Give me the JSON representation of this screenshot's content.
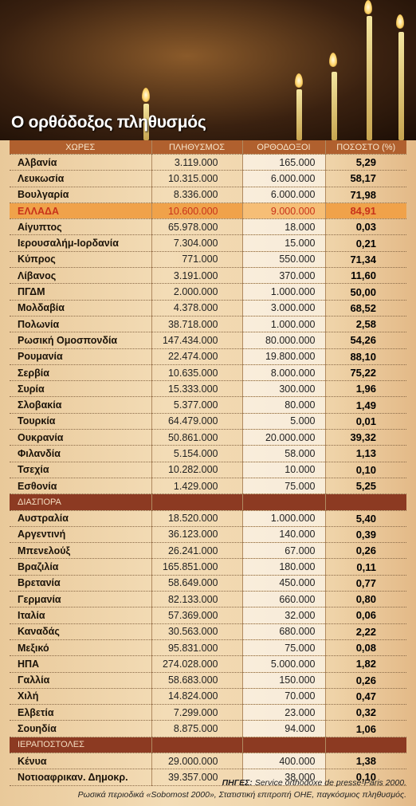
{
  "header": {
    "title": "Ο ορθόδοξος πληθυσμός"
  },
  "table": {
    "columns": [
      "ΧΩΡΕΣ",
      "ΠΛΗΘΥΣΜΟΣ",
      "ΟΡΘΟΔΟΞΟΙ",
      "ΠΟΣΟΣΤΟ (%)"
    ],
    "sections": [
      {
        "rows": [
          [
            "Αλβανία",
            "3.119.000",
            "165.000",
            "5,29"
          ],
          [
            "Λευκωσία",
            "10.315.000",
            "6.000.000",
            "58,17"
          ],
          [
            "Βουλγαρία",
            "8.336.000",
            "6.000.000",
            "71,98"
          ],
          [
            "ΕΛΛΑΔΑ",
            "10.600.000",
            "9.000.000",
            "84,91"
          ],
          [
            "Αίγυπτος",
            "65.978.000",
            "18.000",
            "0,03"
          ],
          [
            "Ιερουσαλήμ-Ιορδανία",
            "7.304.000",
            "15.000",
            "0,21"
          ],
          [
            "Κύπρος",
            "771.000",
            "550.000",
            "71,34"
          ],
          [
            "Λίβανος",
            "3.191.000",
            "370.000",
            "11,60"
          ],
          [
            "ΠΓΔΜ",
            "2.000.000",
            "1.000.000",
            "50,00"
          ],
          [
            "Μολδαβία",
            "4.378.000",
            "3.000.000",
            "68,52"
          ],
          [
            "Πολωνία",
            "38.718.000",
            "1.000.000",
            "2,58"
          ],
          [
            "Ρωσική Ομοσπονδία",
            "147.434.000",
            "80.000.000",
            "54,26"
          ],
          [
            "Ρουμανία",
            "22.474.000",
            "19.800.000",
            "88,10"
          ],
          [
            "Σερβία",
            "10.635.000",
            "8.000.000",
            "75,22"
          ],
          [
            "Συρία",
            "15.333.000",
            "300.000",
            "1,96"
          ],
          [
            "Σλοβακία",
            "5.377.000",
            "80.000",
            "1,49"
          ],
          [
            "Τουρκία",
            "64.479.000",
            "5.000",
            "0,01"
          ],
          [
            "Ουκρανία",
            "50.861.000",
            "20.000.000",
            "39,32"
          ],
          [
            "Φιλανδία",
            "5.154.000",
            "58.000",
            "1,13"
          ],
          [
            "Τσεχία",
            "10.282.000",
            "10.000",
            "0,10"
          ],
          [
            "Εσθονία",
            "1.429.000",
            "75.000",
            "5,25"
          ]
        ]
      },
      {
        "label": "ΔΙΑΣΠΟΡΑ",
        "rows": [
          [
            "Αυστραλία",
            "18.520.000",
            "1.000.000",
            "5,40"
          ],
          [
            "Αργεντινή",
            "36.123.000",
            "140.000",
            "0,39"
          ],
          [
            "Μπενελούξ",
            "26.241.000",
            "67.000",
            "0,26"
          ],
          [
            "Βραζιλία",
            "165.851.000",
            "180.000",
            "0,11"
          ],
          [
            "Βρετανία",
            "58.649.000",
            "450.000",
            "0,77"
          ],
          [
            "Γερμανία",
            "82.133.000",
            "660.000",
            "0,80"
          ],
          [
            "Ιταλία",
            "57.369.000",
            "32.000",
            "0,06"
          ],
          [
            "Καναδάς",
            "30.563.000",
            "680.000",
            "2,22"
          ],
          [
            "Μεξικό",
            "95.831.000",
            "75.000",
            "0,08"
          ],
          [
            "ΗΠΑ",
            "274.028.000",
            "5.000.000",
            "1,82"
          ],
          [
            "Γαλλία",
            "58.683.000",
            "150.000",
            "0,26"
          ],
          [
            "Χιλή",
            "14.824.000",
            "70.000",
            "0,47"
          ],
          [
            "Ελβετία",
            "7.299.000",
            "23.000",
            "0,32"
          ],
          [
            "Σουηδία",
            "8.875.000",
            "94.000",
            "1,06"
          ]
        ]
      },
      {
        "label": "ΙΕΡΑΠΟΣΤΟΛΕΣ",
        "rows": [
          [
            "Κένυα",
            "29.000.000",
            "400.000",
            "1,38"
          ],
          [
            "Νοτιοαφρικαν. Δημοκρ.",
            "39.357.000",
            "38.000",
            "0,10"
          ]
        ]
      }
    ]
  },
  "footer": {
    "label": "ΠΗΓΕΣ:",
    "line1": "Service orthodoxe de presse-Paris 2000.",
    "line2": "Ρωσικά περιοδικά «Sobomost 2000», Στατιστική επιτροπή ΟΗΕ, παγκόσμιος πληθυσμός."
  }
}
